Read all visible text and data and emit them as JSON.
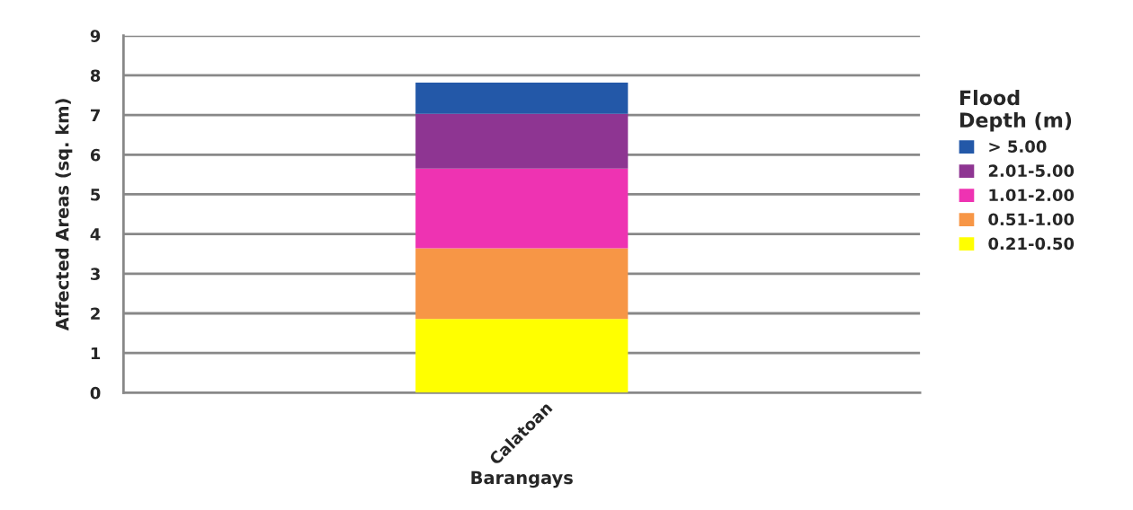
{
  "chart_data": {
    "type": "bar",
    "stacked": true,
    "xlabel": "Barangays",
    "ylabel": "Affected Areas (sq. km)",
    "legend_title": "Flood\nDepth (m)",
    "legend": "right",
    "categories": [
      "Calatoan"
    ],
    "series": [
      {
        "name": "0.21-0.50",
        "color": "#ffff00",
        "values": [
          1.86
        ]
      },
      {
        "name": "0.51-1.00",
        "color": "#f79646",
        "values": [
          1.78
        ]
      },
      {
        "name": "1.01-2.00",
        "color": "#ee33b2",
        "values": [
          2.01
        ]
      },
      {
        "name": "2.01-5.00",
        "color": "#8e3592",
        "values": [
          1.38
        ]
      },
      {
        "name": "> 5.00",
        "color": "#2358a8",
        "values": [
          0.79
        ]
      }
    ],
    "ylim": [
      0,
      9
    ],
    "yticks": [
      0,
      1,
      2,
      3,
      4,
      5,
      6,
      7,
      8,
      9
    ],
    "grid": "y"
  }
}
